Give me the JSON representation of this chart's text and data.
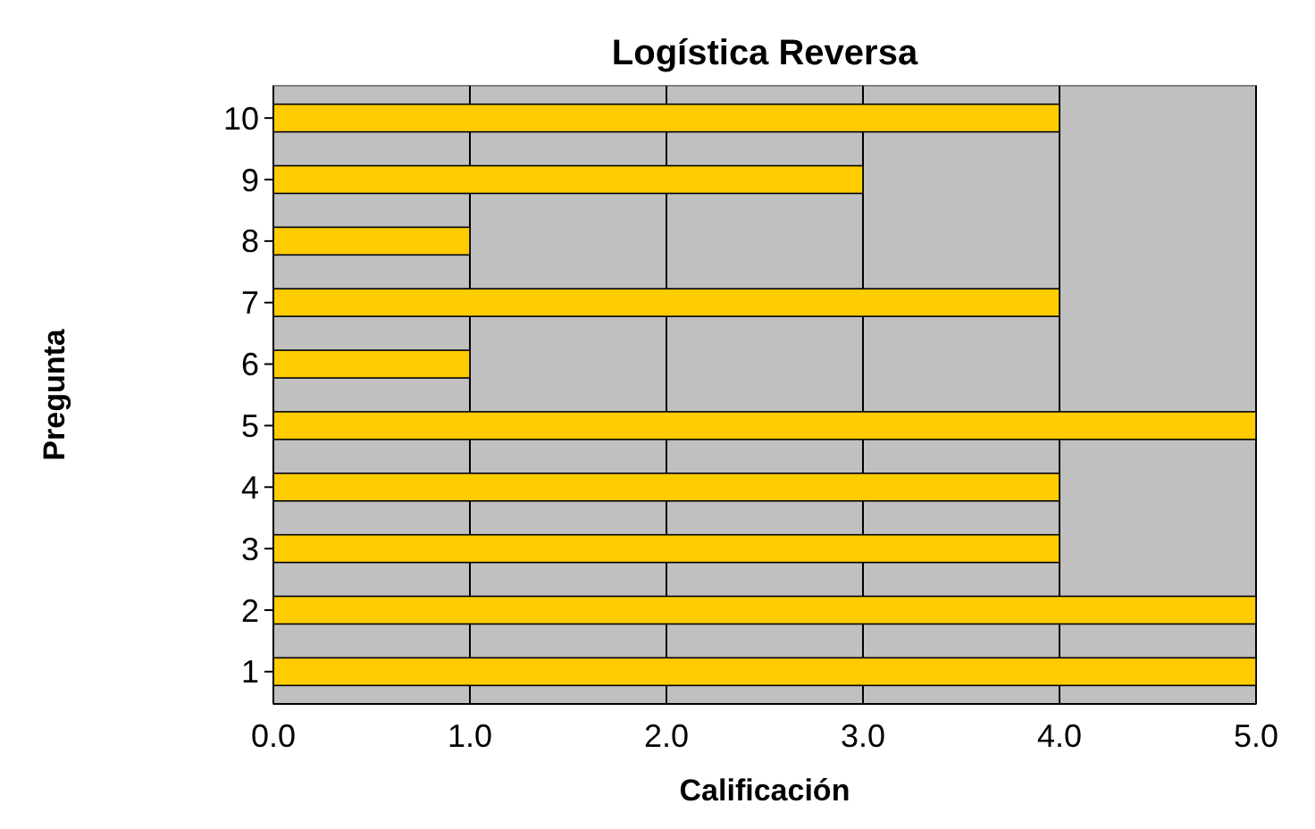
{
  "chart_data": {
    "type": "bar",
    "orientation": "horizontal",
    "title": "Logística Reversa",
    "xlabel": "Calificación",
    "ylabel": "Pregunta",
    "categories": [
      "10",
      "9",
      "8",
      "7",
      "6",
      "5",
      "4",
      "3",
      "2",
      "1"
    ],
    "series": [
      {
        "color": "#ffcc00",
        "values": [
          4,
          3,
          1,
          4,
          1,
          5,
          4,
          4,
          5,
          5
        ]
      }
    ],
    "xlim": [
      0,
      5
    ],
    "xticks": [
      {
        "value": 0,
        "label": "0.0"
      },
      {
        "value": 1,
        "label": "1.0"
      },
      {
        "value": 2,
        "label": "2.0"
      },
      {
        "value": 3,
        "label": "3.0"
      },
      {
        "value": 4,
        "label": "4.0"
      },
      {
        "value": 5,
        "label": "5.0"
      }
    ],
    "grid": "x"
  }
}
